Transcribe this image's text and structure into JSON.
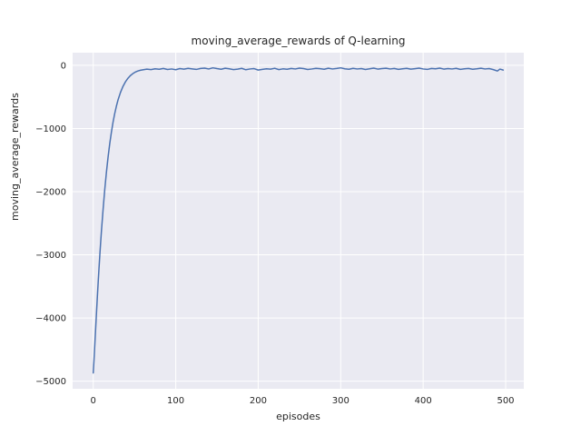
{
  "chart_data": {
    "type": "line",
    "title": "moving_average_rewards of Q-learning",
    "xlabel": "episodes",
    "ylabel": "moving_average_rewards",
    "xlim": [
      -25,
      522
    ],
    "ylim": [
      -5120,
      200
    ],
    "x_ticks": [
      0,
      100,
      200,
      300,
      400,
      500
    ],
    "y_ticks": [
      0,
      -1000,
      -2000,
      -3000,
      -4000,
      -5000
    ],
    "grid": true,
    "legend": "none",
    "line_color": "#4c72b0",
    "axes_background": "#eaeaf2",
    "grid_color": "#ffffff",
    "series": [
      {
        "name": "moving_average_rewards",
        "points": [
          [
            0,
            -4870
          ],
          [
            1,
            -4650
          ],
          [
            2,
            -4400
          ],
          [
            3,
            -4150
          ],
          [
            4,
            -3900
          ],
          [
            5,
            -3660
          ],
          [
            6,
            -3430
          ],
          [
            7,
            -3210
          ],
          [
            8,
            -3000
          ],
          [
            9,
            -2800
          ],
          [
            10,
            -2610
          ],
          [
            12,
            -2270
          ],
          [
            14,
            -1960
          ],
          [
            16,
            -1690
          ],
          [
            18,
            -1450
          ],
          [
            20,
            -1240
          ],
          [
            22,
            -1060
          ],
          [
            24,
            -900
          ],
          [
            26,
            -765
          ],
          [
            28,
            -650
          ],
          [
            30,
            -550
          ],
          [
            33,
            -430
          ],
          [
            36,
            -335
          ],
          [
            39,
            -262
          ],
          [
            42,
            -206
          ],
          [
            45,
            -163
          ],
          [
            48,
            -131
          ],
          [
            51,
            -107
          ],
          [
            54,
            -90
          ],
          [
            57,
            -79
          ],
          [
            60,
            -72
          ],
          [
            65,
            -60
          ],
          [
            70,
            -68
          ],
          [
            75,
            -55
          ],
          [
            80,
            -63
          ],
          [
            85,
            -50
          ],
          [
            90,
            -66
          ],
          [
            95,
            -58
          ],
          [
            100,
            -70
          ],
          [
            105,
            -52
          ],
          [
            110,
            -60
          ],
          [
            115,
            -48
          ],
          [
            120,
            -57
          ],
          [
            125,
            -65
          ],
          [
            130,
            -50
          ],
          [
            135,
            -44
          ],
          [
            140,
            -58
          ],
          [
            145,
            -40
          ],
          [
            150,
            -52
          ],
          [
            155,
            -62
          ],
          [
            160,
            -46
          ],
          [
            165,
            -55
          ],
          [
            170,
            -68
          ],
          [
            175,
            -60
          ],
          [
            180,
            -48
          ],
          [
            185,
            -70
          ],
          [
            190,
            -58
          ],
          [
            195,
            -52
          ],
          [
            200,
            -75
          ],
          [
            205,
            -64
          ],
          [
            210,
            -55
          ],
          [
            215,
            -60
          ],
          [
            220,
            -47
          ],
          [
            225,
            -68
          ],
          [
            230,
            -56
          ],
          [
            235,
            -62
          ],
          [
            240,
            -50
          ],
          [
            245,
            -58
          ],
          [
            250,
            -44
          ],
          [
            255,
            -52
          ],
          [
            260,
            -66
          ],
          [
            265,
            -58
          ],
          [
            270,
            -48
          ],
          [
            275,
            -54
          ],
          [
            280,
            -62
          ],
          [
            285,
            -46
          ],
          [
            290,
            -58
          ],
          [
            295,
            -50
          ],
          [
            300,
            -40
          ],
          [
            305,
            -55
          ],
          [
            310,
            -62
          ],
          [
            315,
            -48
          ],
          [
            320,
            -58
          ],
          [
            325,
            -52
          ],
          [
            330,
            -66
          ],
          [
            335,
            -56
          ],
          [
            340,
            -44
          ],
          [
            345,
            -60
          ],
          [
            350,
            -52
          ],
          [
            355,
            -46
          ],
          [
            360,
            -58
          ],
          [
            365,
            -50
          ],
          [
            370,
            -64
          ],
          [
            375,
            -55
          ],
          [
            380,
            -48
          ],
          [
            385,
            -60
          ],
          [
            390,
            -53
          ],
          [
            395,
            -45
          ],
          [
            400,
            -58
          ],
          [
            405,
            -65
          ],
          [
            410,
            -50
          ],
          [
            415,
            -56
          ],
          [
            420,
            -44
          ],
          [
            425,
            -60
          ],
          [
            430,
            -52
          ],
          [
            435,
            -58
          ],
          [
            440,
            -48
          ],
          [
            445,
            -64
          ],
          [
            450,
            -55
          ],
          [
            455,
            -50
          ],
          [
            460,
            -62
          ],
          [
            465,
            -56
          ],
          [
            470,
            -46
          ],
          [
            475,
            -58
          ],
          [
            480,
            -52
          ],
          [
            485,
            -68
          ],
          [
            490,
            -90
          ],
          [
            493,
            -60
          ],
          [
            497,
            -75
          ]
        ]
      }
    ]
  }
}
